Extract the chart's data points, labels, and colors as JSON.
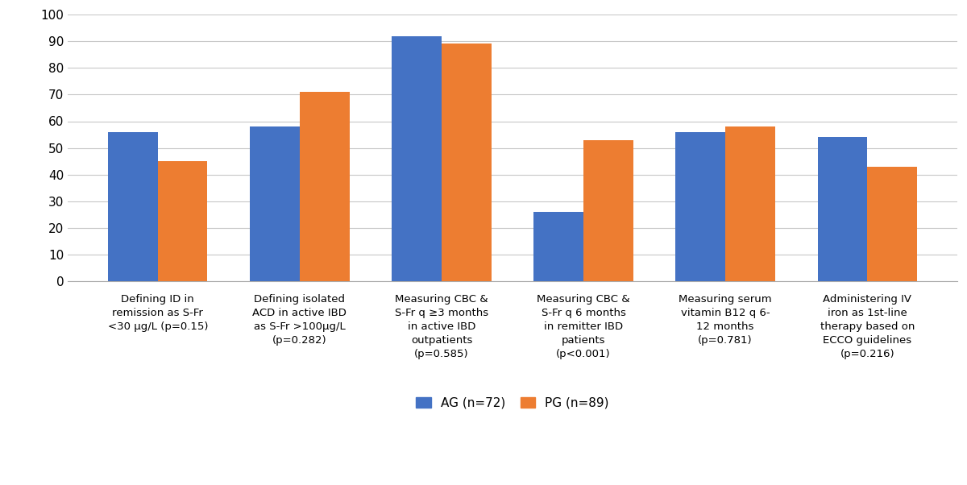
{
  "categories": [
    "Defining ID in\nremission as S-Fr\n<30 μg/L (p=0.15)",
    "Defining isolated\nACD in active IBD\nas S-Fr >100μg/L\n(p=0.282)",
    "Measuring CBC &\nS-Fr q ≥3 months\nin active IBD\noutpatients\n(p=0.585)",
    "Measuring CBC &\nS-Fr q 6 months\nin remitter IBD\npatients\n(p<0.001)",
    "Measuring serum\nvitamin B12 q 6-\n12 months\n(p=0.781)",
    "Administering IV\niron as 1st-line\ntherapy based on\nECCO guidelines\n(p=0.216)"
  ],
  "ag_values": [
    56,
    58,
    92,
    26,
    56,
    54
  ],
  "pg_values": [
    45,
    71,
    89,
    53,
    58,
    43
  ],
  "ag_color": "#4472C4",
  "pg_color": "#ED7D31",
  "ag_label": "AG (n=72)",
  "pg_label": "PG (n=89)",
  "ylim": [
    0,
    100
  ],
  "yticks": [
    0,
    10,
    20,
    30,
    40,
    50,
    60,
    70,
    80,
    90,
    100
  ],
  "bar_width": 0.35,
  "grid_color": "#C8C8C8",
  "background_color": "#FFFFFF",
  "label_fontsize": 9.5,
  "tick_fontsize": 11,
  "legend_fontsize": 11
}
